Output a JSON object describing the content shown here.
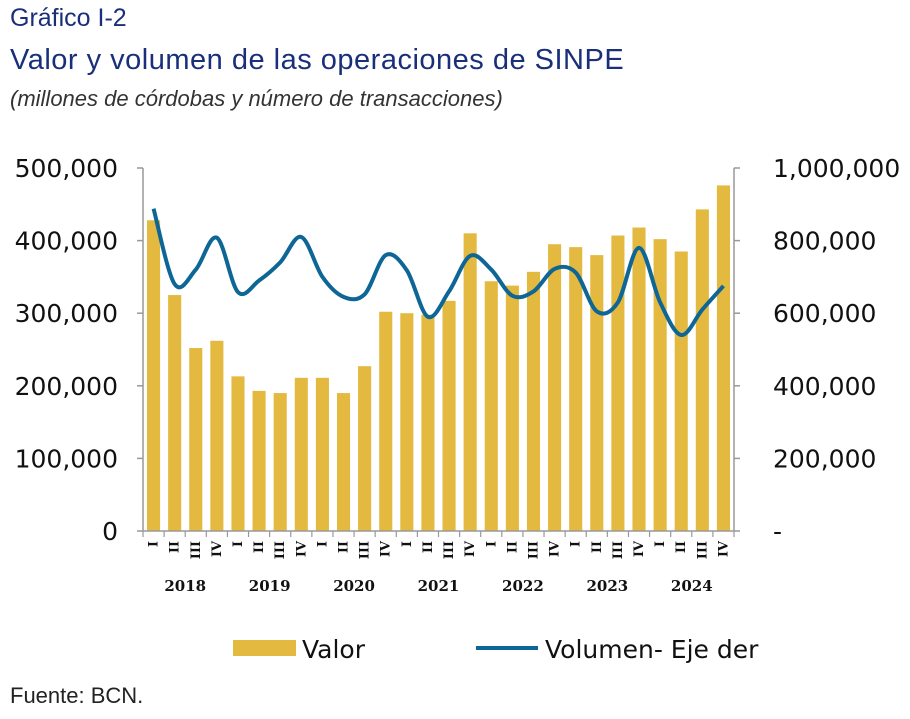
{
  "header": {
    "label": "Gráfico I-2",
    "title": "Valor y volumen de las operaciones de SINPE",
    "subtitle": "(millones de córdobas y número de transacciones)"
  },
  "source": "Fuente: BCN.",
  "colors": {
    "bar": "#e3b93f",
    "line": "#0e6696",
    "axis": "#999999"
  },
  "chart_data": {
    "type": "bar",
    "categories": [
      "I",
      "II",
      "III",
      "IV",
      "I",
      "II",
      "III",
      "IV",
      "I",
      "II",
      "III",
      "IV",
      "I",
      "II",
      "III",
      "IV",
      "I",
      "II",
      "III",
      "IV",
      "I",
      "II",
      "III",
      "IV",
      "I",
      "II",
      "III",
      "IV"
    ],
    "years": [
      "2018",
      "2019",
      "2020",
      "2021",
      "2022",
      "2023",
      "2024"
    ],
    "series": [
      {
        "name": "Valor",
        "axis": "left",
        "type": "bar",
        "values": [
          428000,
          325000,
          252000,
          262000,
          213000,
          193000,
          190000,
          211000,
          211000,
          190000,
          227000,
          302000,
          300000,
          298000,
          317000,
          410000,
          344000,
          338000,
          357000,
          395000,
          391000,
          380000,
          407000,
          418000,
          402000,
          385000,
          443000,
          476000
        ]
      },
      {
        "name": "Volumen- Eje der",
        "axis": "right",
        "type": "line",
        "values": [
          888000,
          680000,
          720000,
          808000,
          658000,
          690000,
          740000,
          810000,
          700000,
          645000,
          652000,
          760000,
          718000,
          590000,
          660000,
          758000,
          720000,
          648000,
          660000,
          722000,
          712000,
          605000,
          630000,
          780000,
          630000,
          540000,
          610000,
          675000
        ]
      }
    ],
    "y_left": {
      "ticks": [
        "0",
        "100,000",
        "200,000",
        "300,000",
        "400,000",
        "500,000"
      ],
      "ylim": [
        0,
        500000
      ]
    },
    "y_right": {
      "ticks": [
        "-",
        "200,000",
        "400,000",
        "600,000",
        "800,000",
        "1,000,000"
      ],
      "ylim": [
        0,
        1000000
      ]
    },
    "grid": false,
    "legend_position": "bottom"
  }
}
